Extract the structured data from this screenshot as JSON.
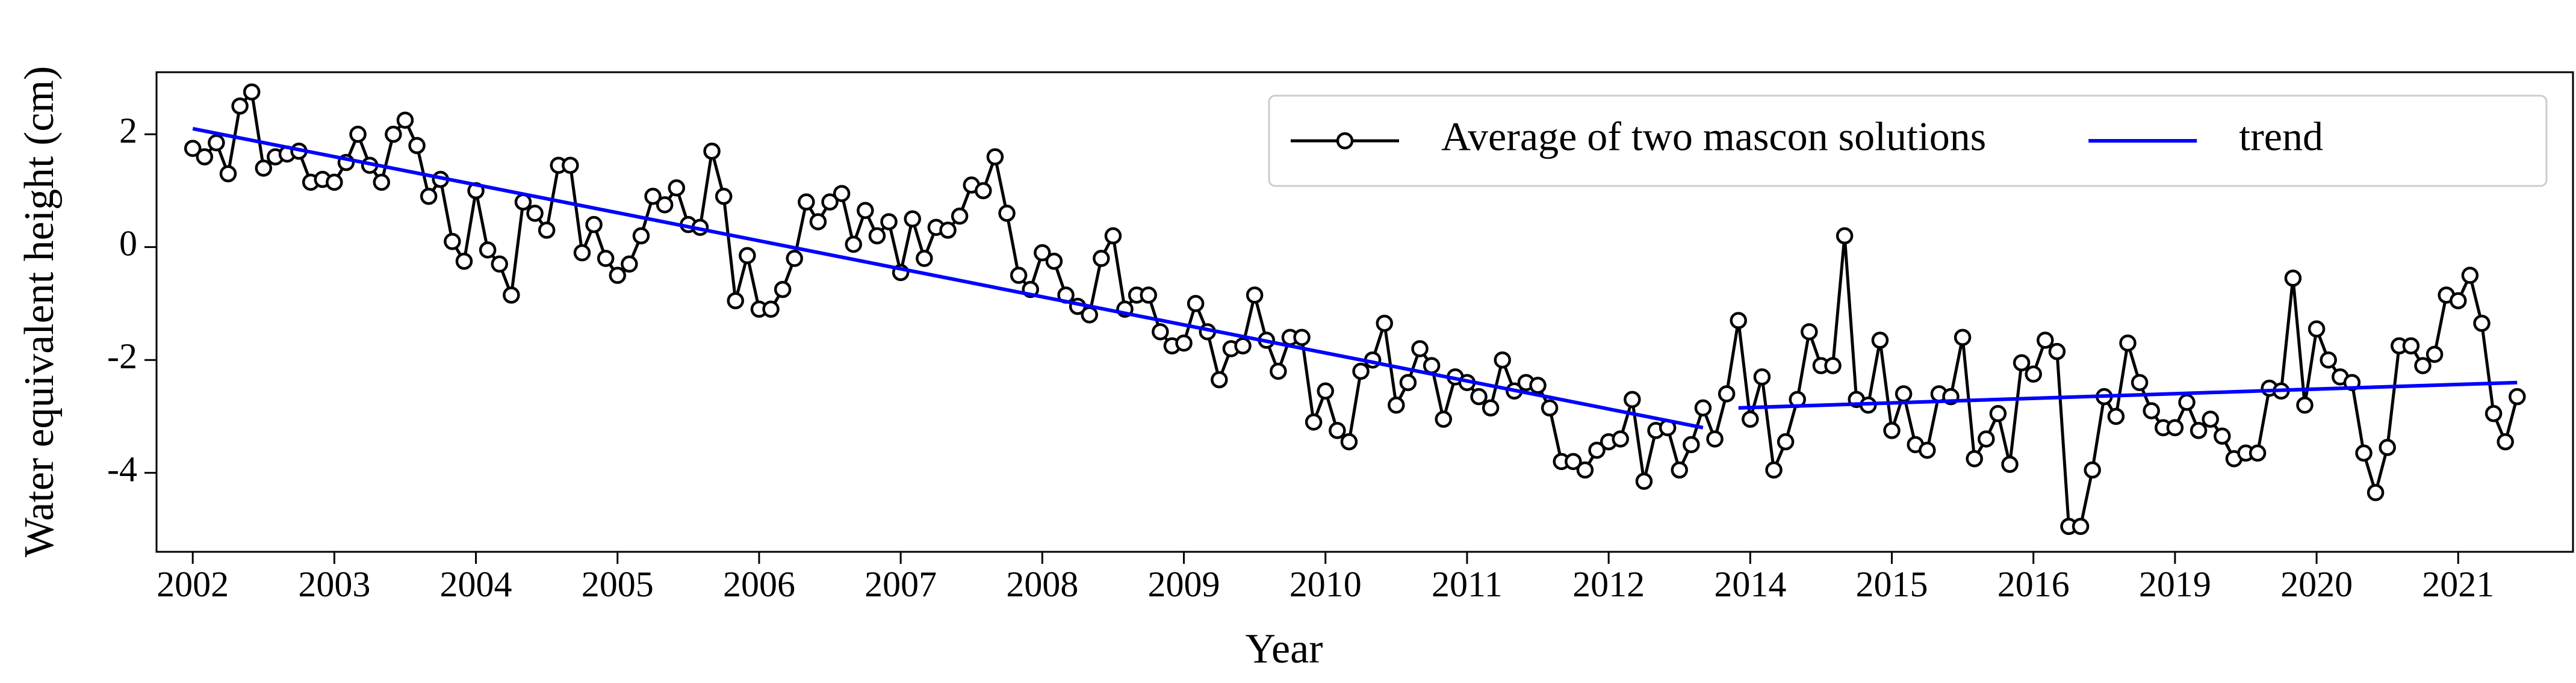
{
  "chart_data": {
    "type": "line",
    "xlabel": "Year",
    "ylabel": "Water equivalent height (cm)",
    "categories": [
      "2002",
      null,
      null,
      null,
      null,
      null,
      null,
      null,
      null,
      null,
      null,
      null,
      "2003",
      null,
      null,
      null,
      null,
      null,
      null,
      null,
      null,
      null,
      null,
      null,
      "2004",
      null,
      null,
      null,
      null,
      null,
      null,
      null,
      null,
      null,
      null,
      null,
      "2005",
      null,
      null,
      null,
      null,
      null,
      null,
      null,
      null,
      null,
      null,
      null,
      "2006",
      null,
      null,
      null,
      null,
      null,
      null,
      null,
      null,
      null,
      null,
      null,
      "2007",
      null,
      null,
      null,
      null,
      null,
      null,
      null,
      null,
      null,
      null,
      null,
      "2008",
      null,
      null,
      null,
      null,
      null,
      null,
      null,
      null,
      null,
      null,
      null,
      "2009",
      null,
      null,
      null,
      null,
      null,
      null,
      null,
      null,
      null,
      null,
      null,
      "2010",
      null,
      null,
      null,
      null,
      null,
      null,
      null,
      null,
      null,
      null,
      null,
      "2011",
      null,
      null,
      null,
      null,
      null,
      null,
      null,
      null,
      null,
      null,
      null,
      "2012",
      null,
      null,
      null,
      null,
      null,
      null,
      null,
      null,
      null,
      null,
      null,
      "2014",
      null,
      null,
      null,
      null,
      null,
      null,
      null,
      null,
      null,
      null,
      null,
      "2015",
      null,
      null,
      null,
      null,
      null,
      null,
      null,
      null,
      null,
      null,
      null,
      "2016",
      null,
      null,
      null,
      null,
      null,
      null,
      null,
      null,
      null,
      null,
      null,
      "2019",
      null,
      null,
      null,
      null,
      null,
      null,
      null,
      null,
      null,
      null,
      null,
      "2020",
      null,
      null,
      null,
      null,
      null,
      null,
      null,
      null,
      null,
      null,
      null,
      "2021",
      null,
      null,
      null,
      null,
      null
    ],
    "series": [
      {
        "name": "Average of two mascon solutions",
        "color": "#000000",
        "marker": "circle",
        "values": [
          1.75,
          1.6,
          1.85,
          1.3,
          2.5,
          2.75,
          1.4,
          1.6,
          1.65,
          1.7,
          1.15,
          1.2,
          1.15,
          1.5,
          2.0,
          1.45,
          1.15,
          2.0,
          2.25,
          1.8,
          0.9,
          1.2,
          0.1,
          -0.25,
          1.0,
          -0.05,
          -0.3,
          -0.85,
          0.8,
          0.6,
          0.3,
          1.45,
          1.45,
          -0.1,
          0.4,
          -0.2,
          -0.5,
          -0.3,
          0.2,
          0.9,
          0.75,
          1.05,
          0.4,
          0.35,
          1.7,
          0.9,
          -0.95,
          -0.15,
          -1.1,
          -1.1,
          -0.75,
          -0.2,
          0.8,
          0.45,
          0.8,
          0.95,
          0.05,
          0.65,
          0.2,
          0.45,
          -0.45,
          0.5,
          -0.2,
          0.35,
          0.3,
          0.55,
          1.1,
          1.0,
          1.6,
          0.6,
          -0.5,
          -0.75,
          -0.1,
          -0.25,
          -0.85,
          -1.05,
          -1.2,
          -0.2,
          0.2,
          -1.1,
          -0.85,
          -0.85,
          -1.5,
          -1.75,
          -1.7,
          -1.0,
          -1.5,
          -2.35,
          -1.8,
          -1.75,
          -0.85,
          -1.65,
          -2.2,
          -1.6,
          -1.6,
          -3.1,
          -2.55,
          -3.25,
          -3.45,
          -2.2,
          -2.0,
          -1.35,
          -2.8,
          -2.4,
          -1.8,
          -2.1,
          -3.05,
          -2.3,
          -2.4,
          -2.65,
          -2.85,
          -2.0,
          -2.55,
          -2.4,
          -2.45,
          -2.85,
          -3.8,
          -3.8,
          -3.95,
          -3.6,
          -3.45,
          -3.4,
          -2.7,
          -4.15,
          -3.25,
          -3.2,
          -3.95,
          -3.5,
          -2.85,
          -3.4,
          -2.6,
          -1.3,
          -3.05,
          -2.3,
          -3.95,
          -3.45,
          -2.7,
          -1.5,
          -2.1,
          -2.1,
          0.2,
          -2.7,
          -2.8,
          -1.65,
          -3.25,
          -2.6,
          -3.5,
          -3.6,
          -2.6,
          -2.65,
          -1.6,
          -3.75,
          -3.4,
          -2.95,
          -3.85,
          -2.05,
          -2.25,
          -1.65,
          -1.85,
          -4.95,
          -4.95,
          -3.95,
          -2.65,
          -3.0,
          -1.7,
          -2.4,
          -2.9,
          -3.2,
          -3.2,
          -2.75,
          -3.25,
          -3.05,
          -3.35,
          -3.75,
          -3.65,
          -3.65,
          -2.5,
          -2.55,
          -0.55,
          -2.8,
          -1.45,
          -2.0,
          -2.3,
          -2.4,
          -3.65,
          -4.35,
          -3.55,
          -1.75,
          -1.75,
          -2.1,
          -1.9,
          -0.85,
          -0.95,
          -0.5,
          -1.35,
          -2.95,
          -3.45,
          -2.65
        ]
      },
      {
        "name": "trend",
        "color": "#0000ff",
        "x": [
          0,
          128,
          null,
          131,
          197
        ],
        "values": [
          2.1,
          -3.2,
          null,
          -2.85,
          -2.4
        ]
      }
    ],
    "ylim": [
      -5.4,
      3.1
    ],
    "yticks": [
      -4,
      -2,
      0,
      2
    ],
    "legend": "upper right"
  }
}
